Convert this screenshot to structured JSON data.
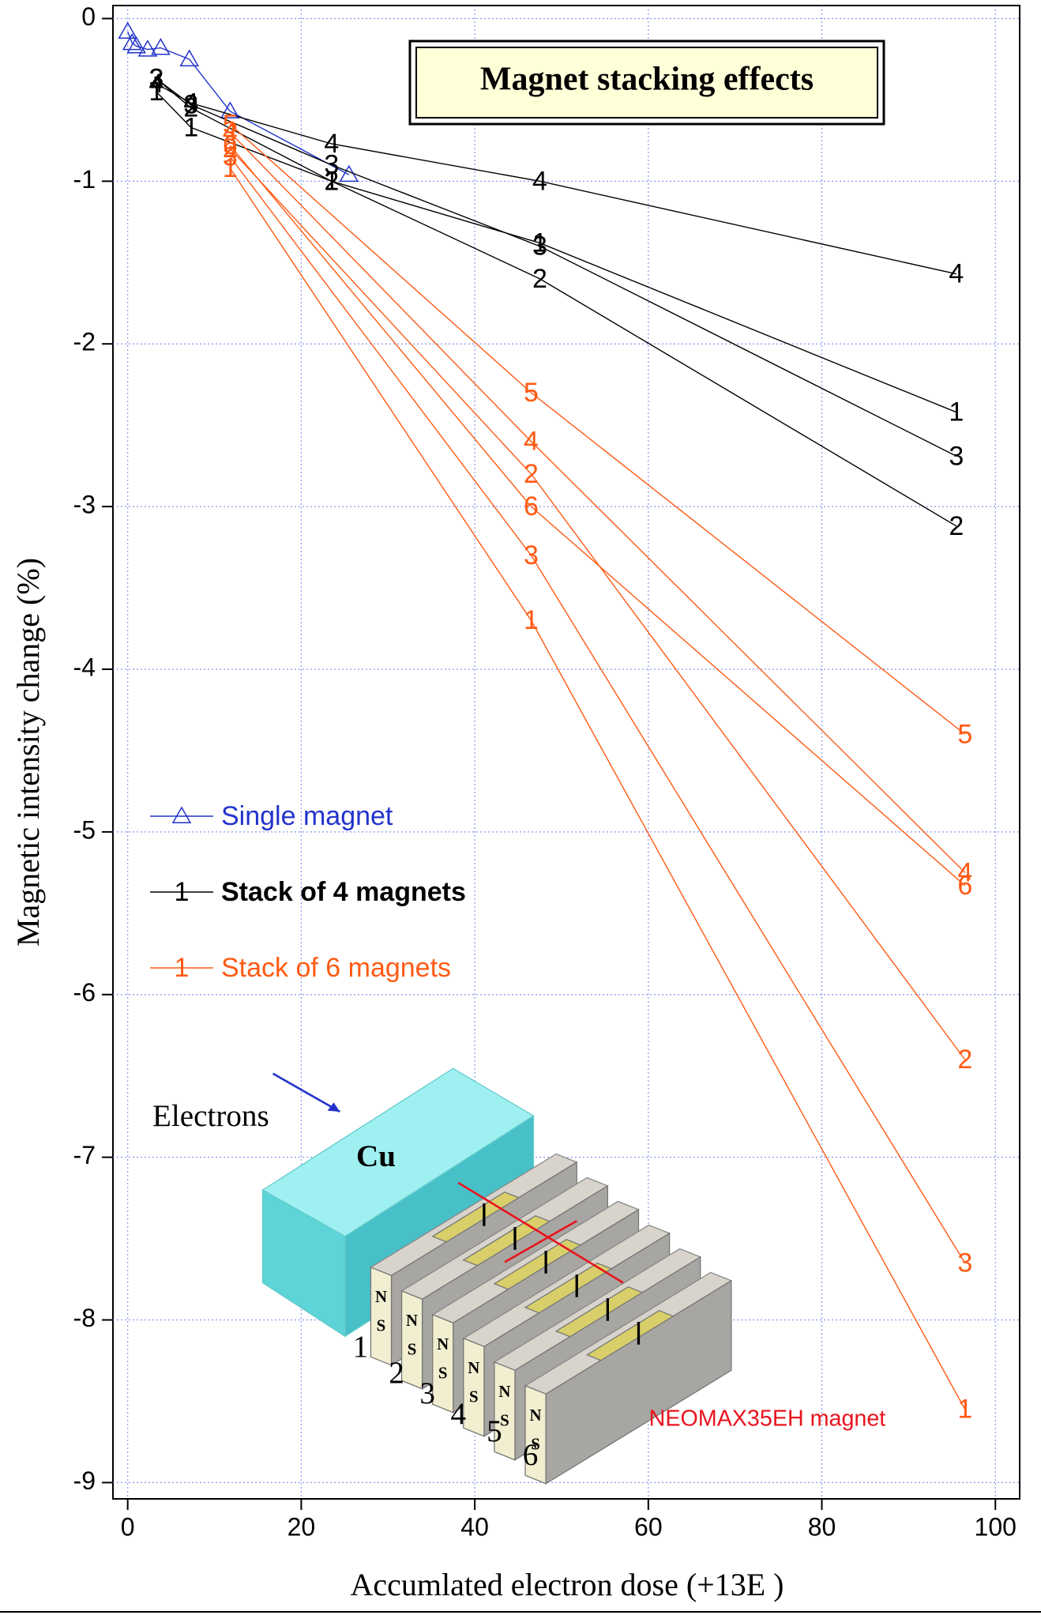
{
  "chart_data": {
    "type": "line",
    "title": "Magnet stacking effects",
    "x_label": "Accumlated electron dose (+13E )",
    "y_label": "Magnetic intensity change (%)",
    "xlim": [
      -1.7,
      102.8
    ],
    "ylim": [
      -9.1,
      0.08
    ],
    "xticks": [
      0,
      20,
      40,
      60,
      80,
      100
    ],
    "yticks": [
      0,
      -1,
      -2,
      -3,
      -4,
      -5,
      -6,
      -7,
      -8,
      -9
    ],
    "grid": true,
    "legend": "left",
    "groups": [
      {
        "name": "Single magnet",
        "color": "#2233cc",
        "marker": "triangle",
        "series": [
          {
            "x": [
              0,
              0.5,
              1,
              2.3,
              3.8,
              7.1,
              11.8,
              25.5
            ],
            "values": [
              -0.08,
              -0.15,
              -0.17,
              -0.19,
              -0.18,
              -0.25,
              -0.57,
              -0.96
            ]
          }
        ]
      },
      {
        "name": "Stack of 4 magnets",
        "color": "#000000",
        "marker": "name",
        "series": [
          {
            "name": "1",
            "x": [
              3.3,
              7.3,
              23.5,
              47.5,
              95.5
            ],
            "values": [
              -0.45,
              -0.67,
              -1.0,
              -1.38,
              -2.42
            ]
          },
          {
            "name": "2",
            "x": [
              3.3,
              7.3,
              23.5,
              47.5,
              95.5
            ],
            "values": [
              -0.37,
              -0.55,
              -1.0,
              -1.6,
              -3.12
            ]
          },
          {
            "name": "3",
            "x": [
              3.3,
              7.3,
              23.5,
              47.5,
              95.5
            ],
            "values": [
              -0.37,
              -0.53,
              -0.9,
              -1.4,
              -2.69
            ]
          },
          {
            "name": "4",
            "x": [
              3.3,
              7.3,
              23.5,
              47.5,
              95.5
            ],
            "values": [
              -0.4,
              -0.52,
              -0.77,
              -1.0,
              -1.57
            ]
          }
        ]
      },
      {
        "name": "Stack of 6 magnets",
        "color": "#ff5a14",
        "marker": "name",
        "series": [
          {
            "name": "1",
            "x": [
              11.8,
              46.5,
              96.5
            ],
            "values": [
              -0.92,
              -3.7,
              -8.55
            ]
          },
          {
            "name": "2",
            "x": [
              11.8,
              46.5,
              96.5
            ],
            "values": [
              -0.8,
              -2.8,
              -6.4
            ]
          },
          {
            "name": "3",
            "x": [
              11.8,
              46.5,
              96.5
            ],
            "values": [
              -0.85,
              -3.3,
              -7.65
            ]
          },
          {
            "name": "4",
            "x": [
              11.8,
              46.5,
              96.5
            ],
            "values": [
              -0.7,
              -2.6,
              -5.25
            ]
          },
          {
            "name": "5",
            "x": [
              11.8,
              46.5,
              96.5
            ],
            "values": [
              -0.65,
              -2.3,
              -4.4
            ]
          },
          {
            "name": "6",
            "x": [
              11.8,
              46.5,
              96.5
            ],
            "values": [
              -0.78,
              -3.0,
              -5.33
            ]
          }
        ]
      }
    ],
    "inset": {
      "beam": "Electrons",
      "block": "Cu",
      "north": "N",
      "south": "S",
      "magnets": [
        "1",
        "2",
        "3",
        "4",
        "5",
        "6"
      ],
      "caption": "NEOMAX35EH magnet"
    }
  }
}
